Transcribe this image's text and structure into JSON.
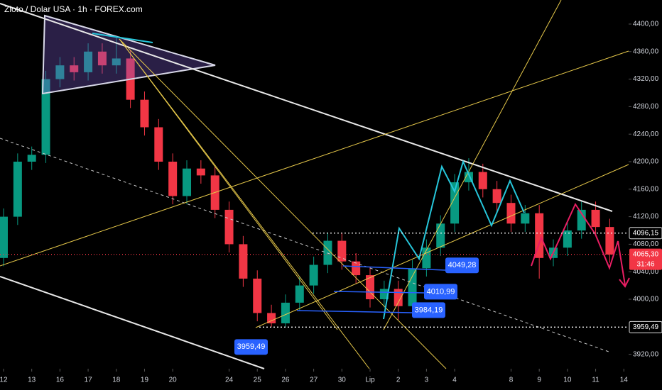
{
  "chart_data": {
    "type": "candlestick",
    "title": "Zloto / Dolar USA · 1h · FOREX.com",
    "x": [
      0,
      0.5,
      1,
      1.5,
      2,
      2.5,
      3,
      3.5,
      4,
      4.5,
      5,
      5.5,
      6,
      6.5,
      7,
      7.5,
      8,
      8.5,
      9,
      9.5,
      10,
      10.5,
      11,
      11.5,
      12,
      12.5,
      13,
      13.5,
      14,
      14.5,
      15,
      15.5,
      16,
      16.5,
      17,
      17.5,
      18,
      18.5,
      19,
      19.5,
      20,
      20.5,
      21,
      21.5
    ],
    "open": [
      4060,
      4120,
      4200,
      4210,
      4320,
      4340,
      4330,
      4360,
      4340,
      4350,
      4290,
      4250,
      4200,
      4150,
      4190,
      4180,
      4130,
      4080,
      4030,
      3980,
      3965,
      3995,
      4020,
      4050,
      4085,
      4055,
      4035,
      4000,
      4015,
      3990,
      4045,
      4075,
      4110,
      4170,
      4185,
      4160,
      4140,
      4110,
      4125,
      4060,
      4075,
      4100,
      4130,
      4105
    ],
    "high": [
      4132,
      4212,
      4222,
      4332,
      4352,
      4352,
      4372,
      4372,
      4380,
      4362,
      4302,
      4262,
      4212,
      4202,
      4202,
      4192,
      4142,
      4092,
      4042,
      3992,
      4007,
      4032,
      4062,
      4097,
      4097,
      4067,
      4047,
      4027,
      4027,
      4057,
      4087,
      4122,
      4182,
      4205,
      4197,
      4172,
      4152,
      4137,
      4137,
      4087,
      4112,
      4142,
      4142,
      4117
    ],
    "low": [
      4048,
      4108,
      4188,
      4198,
      4308,
      4318,
      4318,
      4328,
      4328,
      4278,
      4238,
      4188,
      4138,
      4138,
      4168,
      4118,
      4068,
      4018,
      3968,
      3960,
      3960,
      3983,
      4008,
      4038,
      4043,
      4023,
      3988,
      3988,
      3970,
      3978,
      4033,
      4063,
      4098,
      4158,
      4148,
      4128,
      4098,
      4098,
      4030,
      4048,
      4063,
      4088,
      4093,
      4053
    ],
    "close": [
      4120,
      4200,
      4210,
      4320,
      4340,
      4330,
      4360,
      4340,
      4350,
      4290,
      4250,
      4200,
      4150,
      4190,
      4180,
      4130,
      4080,
      4030,
      3980,
      3965,
      3995,
      4020,
      4050,
      4085,
      4055,
      4035,
      4000,
      4015,
      3990,
      4045,
      4075,
      4110,
      4170,
      4185,
      4160,
      4140,
      4110,
      4125,
      4060,
      4075,
      4100,
      4130,
      4105,
      4065
    ],
    "up_color": "#089981",
    "down_color": "#f23645",
    "xlim": [
      -0.126,
      22.17
    ],
    "xticks": [
      {
        "value": 0,
        "label": "12"
      },
      {
        "value": 1,
        "label": "13"
      },
      {
        "value": 2,
        "label": "16"
      },
      {
        "value": 3,
        "label": "17"
      },
      {
        "value": 4,
        "label": "18"
      },
      {
        "value": 5,
        "label": "19"
      },
      {
        "value": 6,
        "label": "20"
      },
      {
        "value": 8,
        "label": "24"
      },
      {
        "value": 9,
        "label": "25"
      },
      {
        "value": 10,
        "label": "26"
      },
      {
        "value": 11,
        "label": "27"
      },
      {
        "value": 12,
        "label": "30"
      },
      {
        "value": 13,
        "label": "Lip"
      },
      {
        "value": 14,
        "label": "2"
      },
      {
        "value": 15,
        "label": "3"
      },
      {
        "value": 16,
        "label": "4"
      },
      {
        "value": 18,
        "label": "8"
      },
      {
        "value": 19,
        "label": "9"
      },
      {
        "value": 20,
        "label": "10"
      },
      {
        "value": 21,
        "label": "11"
      },
      {
        "value": 22,
        "label": "14"
      }
    ],
    "ylim": [
      3899,
      4435
    ],
    "yticks": [
      {
        "value": 3920,
        "label": "3920,00"
      },
      {
        "value": 4000,
        "label": "4000,00"
      },
      {
        "value": 4040,
        "label": "4040,00"
      },
      {
        "value": 4080,
        "label": "4080,00"
      },
      {
        "value": 4120,
        "label": "4120,00"
      },
      {
        "value": 4160,
        "label": "4160,00"
      },
      {
        "value": 4200,
        "label": "4200,00"
      },
      {
        "value": 4240,
        "label": "4240,00"
      },
      {
        "value": 4280,
        "label": "4280,00"
      },
      {
        "value": 4320,
        "label": "4320,00"
      },
      {
        "value": 4360,
        "label": "4360,00"
      },
      {
        "value": 4400,
        "label": "4400,00"
      }
    ],
    "price_lines": [
      {
        "value": 4096.15,
        "label": "4096,15"
      },
      {
        "value": 4065.3,
        "label": "4065,30",
        "countdown": "31:46"
      },
      {
        "value": 3959.49,
        "label": "3959,49"
      }
    ],
    "annotations": [
      {
        "value": 4049.28,
        "label": "4049,28"
      },
      {
        "value": 4010.99,
        "label": "4010,99"
      },
      {
        "value": 3984.19,
        "label": "3984,19"
      },
      {
        "value": 3959.49,
        "label": "3959,49"
      }
    ]
  }
}
